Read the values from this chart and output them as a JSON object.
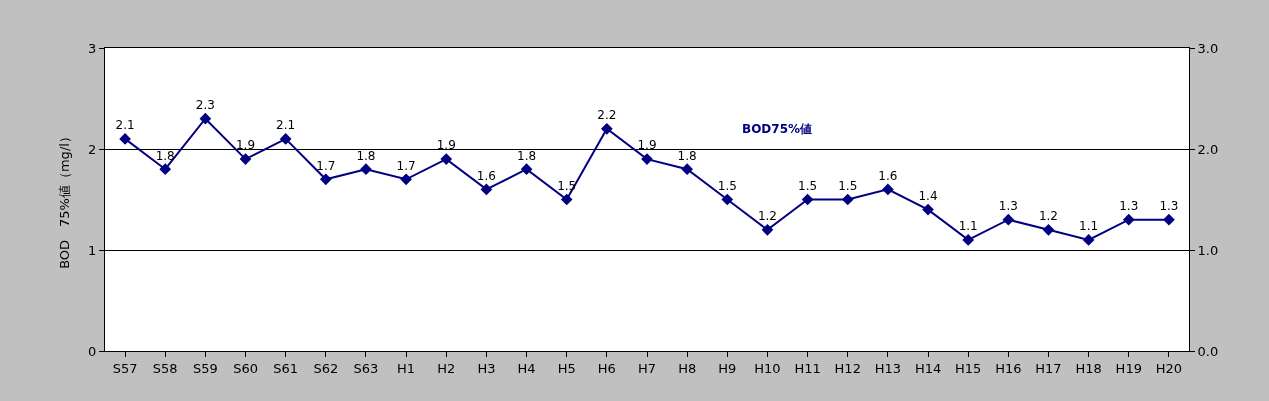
{
  "chart_data": {
    "type": "line",
    "categories": [
      "S57",
      "S58",
      "S59",
      "S60",
      "S61",
      "S62",
      "S63",
      "H1",
      "H2",
      "H3",
      "H4",
      "H5",
      "H6",
      "H7",
      "H8",
      "H9",
      "H10",
      "H11",
      "H12",
      "H13",
      "H14",
      "H15",
      "H16",
      "H17",
      "H18",
      "H19",
      "H20"
    ],
    "series": [
      {
        "name": "BOD75%値",
        "color": "#000080",
        "values": [
          2.1,
          1.8,
          2.3,
          1.9,
          2.1,
          1.7,
          1.8,
          1.7,
          1.9,
          1.6,
          1.8,
          1.5,
          2.2,
          1.9,
          1.8,
          1.5,
          1.2,
          1.5,
          1.5,
          1.6,
          1.4,
          1.1,
          1.3,
          1.2,
          1.1,
          1.3,
          1.3
        ]
      }
    ],
    "ylabel": "BOD　75%値（mg/l）",
    "ylim": [
      0,
      3
    ],
    "yticks": [
      0,
      1,
      2,
      3
    ],
    "y2lim": [
      0,
      3
    ],
    "y2ticks": [
      {
        "value": 0,
        "label": "0.0"
      },
      {
        "value": 1,
        "label": "1.0"
      },
      {
        "value": 2,
        "label": "2.0"
      },
      {
        "value": 3,
        "label": "3.0"
      }
    ],
    "grid": "y",
    "marker": "diamond",
    "line_style": "solid",
    "data_labels": true
  }
}
